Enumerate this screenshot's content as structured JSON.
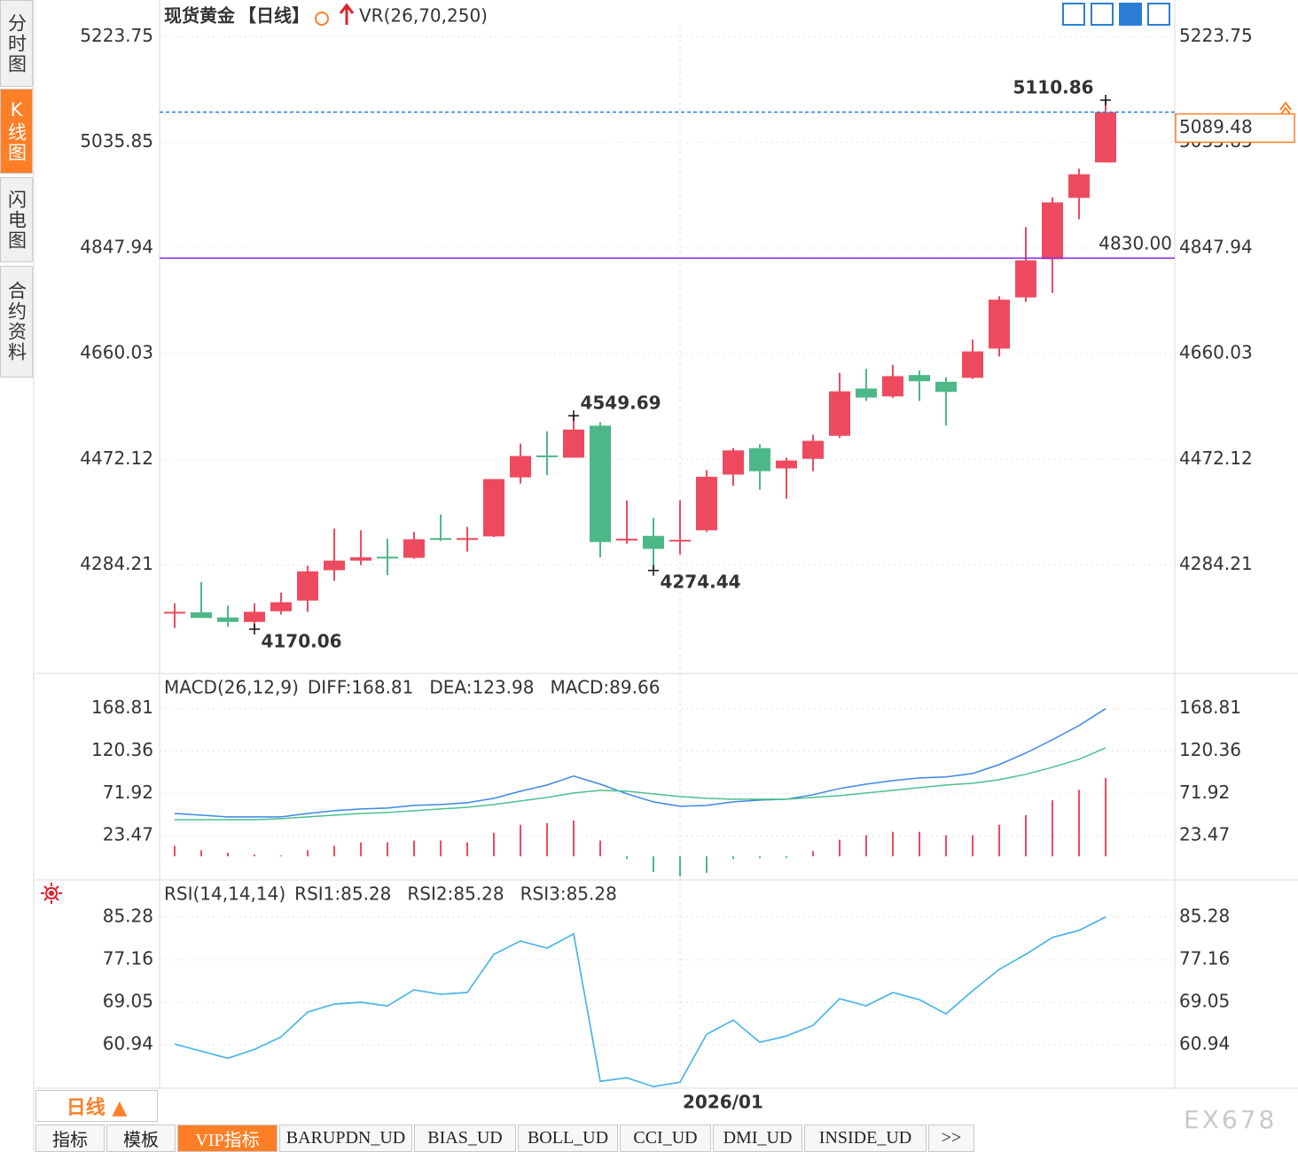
{
  "ui": {
    "sidebar_tabs": [
      "分时图",
      "K线图",
      "闪电图",
      "合约资料"
    ],
    "active_sidebar_tab": 1,
    "period_button": "日线 ▲",
    "bottom_tabs": [
      "指标",
      "模板",
      "VIP指标",
      "BARUPDN_UD",
      "BIAS_UD",
      "BOLL_UD",
      "CCI_UD",
      "DMI_UD",
      "INSIDE_UD",
      ">>"
    ],
    "active_bottom_tab": 2,
    "watermark": "EX678"
  },
  "chart_data": [
    {
      "type": "candlestick",
      "title": "现货黄金",
      "period": "【日线】",
      "indicator": "VR(26,70,250)",
      "categories": [
        null,
        null,
        null,
        null,
        null,
        null,
        null,
        null,
        null,
        null,
        null,
        null,
        null,
        null,
        null,
        null,
        null,
        null,
        null,
        "2026/01",
        null,
        null,
        null,
        null,
        null,
        null,
        null,
        null,
        null,
        null,
        null,
        null,
        null,
        null,
        null,
        null
      ],
      "open": [
        4200,
        4200,
        4191,
        4183,
        4202,
        4221,
        4275,
        4292,
        4299,
        4297,
        4332,
        4330,
        4335,
        4440,
        4479,
        4475,
        4532,
        4329,
        4336,
        4328,
        4346,
        4445,
        4492,
        4456,
        4473,
        4514,
        4598,
        4584,
        4622,
        4610,
        4617,
        4669,
        4760,
        4828,
        4937,
        5000
      ],
      "high": [
        4216,
        4254,
        4212,
        4216,
        4235,
        4283,
        4349,
        4346,
        4331,
        4343,
        4374,
        4352,
        4437,
        4500,
        4522,
        4549.69,
        4538,
        4399,
        4368,
        4399,
        4453,
        4492,
        4499,
        4475,
        4516,
        4626,
        4633,
        4640,
        4630,
        4618,
        4685,
        4762,
        4885,
        4938,
        4989,
        5110.86
      ],
      "low": [
        4172,
        4190,
        4174,
        4170.06,
        4196,
        4201,
        4256,
        4284,
        4266,
        4295,
        4327,
        4308,
        4334,
        4429,
        4444,
        4475,
        4298,
        4322,
        4274.44,
        4303,
        4343,
        4425,
        4418,
        4402,
        4451,
        4510,
        4576,
        4581,
        4576,
        4532,
        4615,
        4655,
        4752,
        4768,
        4899,
        5000
      ],
      "close": [
        4201,
        4190,
        4183,
        4201,
        4218,
        4273,
        4292,
        4298,
        4297,
        4330,
        4330,
        4332,
        4437,
        4478,
        4477,
        4525,
        4325,
        4331,
        4313,
        4329,
        4441,
        4488,
        4451,
        4470,
        4505,
        4593,
        4582,
        4620,
        4611,
        4592,
        4664,
        4756,
        4826,
        4929,
        4979,
        5089.48
      ],
      "up_color": "#ee4a5f",
      "down_color": "#4cb887",
      "ylim": [
        4100,
        5240
      ],
      "yticks": [
        4284.21,
        4472.12,
        4660.03,
        4847.94,
        5035.85,
        5223.75
      ],
      "grid": true,
      "reference_line": {
        "value": 4830,
        "label": "4830.00",
        "color": "#8a2be2"
      },
      "last_price_color": "#ff7f27",
      "last_price_line_color": "#1e7de0"
    },
    {
      "type": "macd",
      "title": "MACD(26,12,9)",
      "up_color": "#ee4a5f",
      "down_color": "#4cb887",
      "ylim": [
        -24,
        207
      ],
      "yticks": [
        23.47,
        71.92,
        120.36,
        168.81
      ],
      "grid": true,
      "series": [
        {
          "name": "DIFF:168.81",
          "color": "#3d86e6",
          "style": "line",
          "values": [
            49.0,
            47.0,
            45.0,
            45.0,
            45.0,
            49.0,
            52.1,
            54.1,
            55.1,
            58.2,
            59.2,
            61.2,
            66.3,
            74.4,
            81.5,
            91.7,
            82.5,
            71.4,
            62.2,
            57.2,
            58.2,
            62.2,
            64.3,
            65.3,
            70.4,
            77.5,
            82.5,
            86.6,
            89.6,
            90.7,
            94.7,
            104.8,
            118.1,
            133.3,
            149.5,
            168.81
          ]
        },
        {
          "name": "DEA:123.98",
          "color": "#4cc08c",
          "style": "line",
          "values": [
            41.9,
            41.9,
            41.9,
            41.9,
            43.0,
            45.0,
            47.0,
            49.0,
            50.1,
            52.1,
            54.1,
            56.1,
            59.2,
            63.3,
            67.3,
            72.4,
            75.4,
            74.4,
            71.4,
            68.3,
            66.3,
            65.3,
            65.3,
            65.3,
            67.3,
            69.3,
            72.4,
            75.4,
            78.5,
            81.5,
            83.5,
            87.6,
            93.7,
            101.8,
            110.9,
            123.98
          ]
        },
        {
          "name": "MACD:89.66",
          "color": "#4fb6f0",
          "style": "bar",
          "values": [
            12,
            7,
            4,
            2,
            1,
            7,
            12,
            16,
            16,
            18,
            18,
            16,
            27,
            36,
            38,
            41,
            18,
            -3,
            -18,
            -23,
            -19,
            -3,
            -2,
            -2,
            6,
            19,
            24,
            28,
            28,
            24,
            24,
            36,
            47,
            64,
            76,
            89.66
          ]
        }
      ]
    },
    {
      "type": "line",
      "title": "RSI(14,14,14)",
      "ylim": [
        52.7,
        92
      ],
      "yticks": [
        60.94,
        69.05,
        77.16,
        85.28
      ],
      "grid": true,
      "series": [
        {
          "name": "RSI1:85.28",
          "color": "#3aa3e8",
          "style": "line",
          "values": [
            61.1,
            59.75,
            58.4,
            60.09,
            62.46,
            67.19,
            68.71,
            69.05,
            68.37,
            71.42,
            70.57,
            70.91,
            78.18,
            80.72,
            79.36,
            82.07,
            54.0,
            54.68,
            52.99,
            53.84,
            62.96,
            65.67,
            61.44,
            62.63,
            64.65,
            69.73,
            68.37,
            70.91,
            69.56,
            66.85,
            71.25,
            75.31,
            78.18,
            81.39,
            82.74,
            85.28
          ]
        },
        {
          "name": "RSI2:85.28",
          "color": "#4cc08c",
          "style": "line",
          "values": [
            61.1,
            59.75,
            58.4,
            60.09,
            62.46,
            67.19,
            68.71,
            69.05,
            68.37,
            71.42,
            70.57,
            70.91,
            78.18,
            80.72,
            79.36,
            82.07,
            54.0,
            54.68,
            52.99,
            53.84,
            62.96,
            65.67,
            61.44,
            62.63,
            64.65,
            69.73,
            68.37,
            70.91,
            69.56,
            66.85,
            71.25,
            75.31,
            78.18,
            81.39,
            82.74,
            85.28
          ]
        },
        {
          "name": "RSI3:85.28",
          "color": "#4fb6f0",
          "style": "line",
          "values": [
            61.1,
            59.75,
            58.4,
            60.09,
            62.46,
            67.19,
            68.71,
            69.05,
            68.37,
            71.42,
            70.57,
            70.91,
            78.18,
            80.72,
            79.36,
            82.07,
            54.0,
            54.68,
            52.99,
            53.84,
            62.96,
            65.67,
            61.44,
            62.63,
            64.65,
            69.73,
            68.37,
            70.91,
            69.56,
            66.85,
            71.25,
            75.31,
            78.18,
            81.39,
            82.74,
            85.28
          ]
        }
      ]
    }
  ]
}
